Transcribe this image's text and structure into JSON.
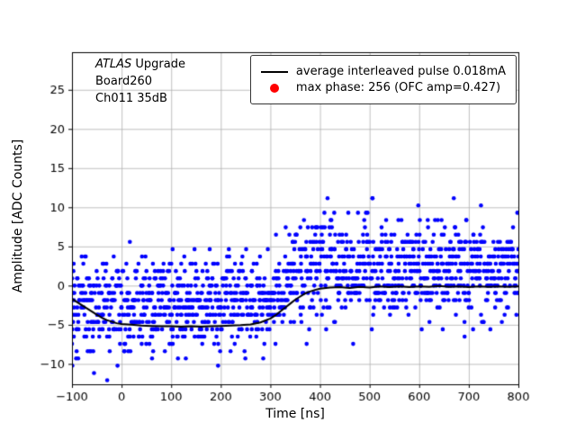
{
  "figure": {
    "background": "#ffffff"
  },
  "annotation": {
    "line1_italic": "ATLAS",
    "line1_rest": " Upgrade",
    "line2": "Board260",
    "line3": "Ch011 35dB"
  },
  "legend": {
    "entries": [
      {
        "type": "line",
        "color": "#000000",
        "label": "average interleaved pulse 0.018mA"
      },
      {
        "type": "dot",
        "color": "#ff0000",
        "label": "max phase: 256 (OFC amp=0.427)"
      }
    ]
  },
  "chart_data": {
    "type": "scatter",
    "title": "",
    "xlabel": "Time [ns]",
    "ylabel": "Amplitude [ADC Counts]",
    "xlim": [
      -100,
      800
    ],
    "ylim": [
      -12.6,
      29.8
    ],
    "x_ticks": [
      -100,
      0,
      100,
      200,
      300,
      400,
      500,
      600,
      700,
      800
    ],
    "y_ticks": [
      -10,
      -5,
      0,
      5,
      10,
      15,
      20,
      25
    ],
    "grid": true,
    "grid_color": "#b0b0b0",
    "scatter_color": "#0000ff",
    "line_color": "#000000",
    "average_pulse": {
      "x": [
        -100,
        -90,
        -80,
        -70,
        -60,
        -50,
        -40,
        -30,
        -20,
        -10,
        0,
        20,
        40,
        60,
        80,
        100,
        120,
        140,
        160,
        180,
        200,
        220,
        240,
        260,
        280,
        300,
        310,
        320,
        330,
        340,
        350,
        360,
        370,
        380,
        390,
        400,
        420,
        440,
        460,
        480,
        500,
        520,
        540,
        560,
        580,
        600,
        620,
        640,
        660,
        680,
        700,
        720,
        740,
        760,
        780,
        800
      ],
      "y": [
        -1.7,
        -2.1,
        -2.5,
        -2.9,
        -3.3,
        -3.7,
        -4.1,
        -4.4,
        -4.6,
        -4.8,
        -4.9,
        -5.0,
        -5.1,
        -5.15,
        -5.2,
        -5.2,
        -5.25,
        -5.2,
        -5.25,
        -5.2,
        -5.15,
        -5.1,
        -5.05,
        -4.95,
        -4.7,
        -4.2,
        -3.8,
        -3.3,
        -2.8,
        -2.3,
        -1.8,
        -1.4,
        -1.0,
        -0.75,
        -0.55,
        -0.4,
        -0.25,
        -0.2,
        -0.3,
        -0.15,
        -0.25,
        -0.1,
        -0.2,
        -0.1,
        -0.2,
        -0.1,
        -0.15,
        -0.05,
        -0.15,
        -0.1,
        -0.2,
        -0.1,
        -0.15,
        -0.1,
        -0.15,
        -0.1
      ]
    },
    "scatter_model": {
      "seed": 12,
      "x_start": -100,
      "x_end": 800,
      "x_step": 5,
      "samples_per_step": 8,
      "sigma": 3.0,
      "quantum": 0.93,
      "marker_radius": 2.3,
      "center_profile": {
        "x": [
          -100,
          0,
          290,
          320,
          360,
          400,
          800
        ],
        "y": [
          -1.8,
          -2.2,
          -2.2,
          -0.9,
          1.6,
          2.3,
          2.3
        ]
      }
    }
  }
}
